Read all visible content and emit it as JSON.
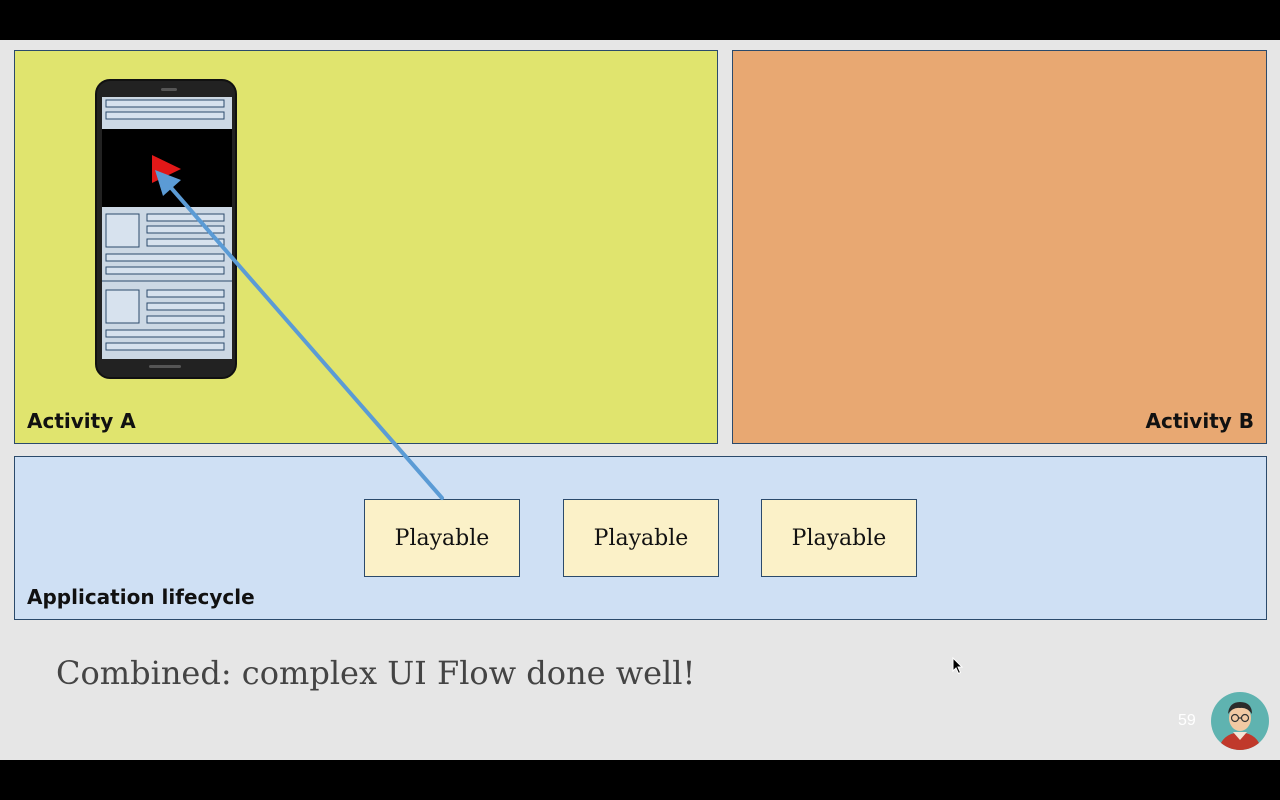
{
  "activity_a": {
    "label": "Activity A",
    "color": "#e0e46e"
  },
  "activity_b": {
    "label": "Activity B",
    "color": "#e8a872"
  },
  "application": {
    "label": "Application lifecycle",
    "color": "#cfe0f4",
    "playables": [
      "Playable",
      "Playable",
      "Playable"
    ]
  },
  "caption": "Combined: complex UI Flow done well!",
  "page_number": "59",
  "icons": {
    "phone": "phone-icon",
    "play": "play-icon",
    "avatar": "avatar-icon",
    "cursor": "mouse-cursor-icon"
  },
  "colors": {
    "arrow": "#5b9bd5",
    "play": "#e21818"
  }
}
